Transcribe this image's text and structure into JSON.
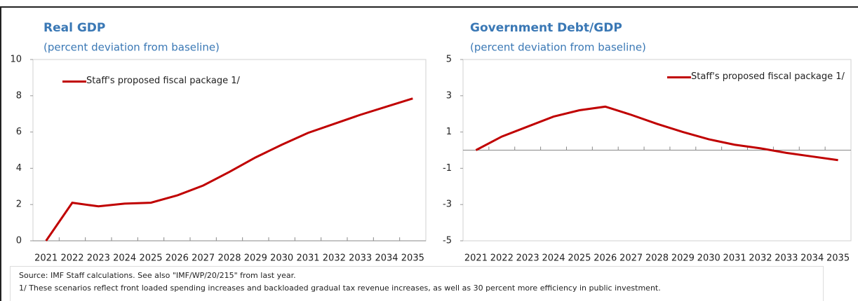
{
  "chart_data": [
    {
      "type": "line",
      "title": "Real GDP",
      "subtitle": "(percent deviation from baseline)",
      "categories": [
        "2021",
        "2022",
        "2023",
        "2024",
        "2025",
        "2026",
        "2027",
        "2028",
        "2029",
        "2030",
        "2031",
        "2032",
        "2033",
        "2034",
        "2035"
      ],
      "series": [
        {
          "name": "Staff's proposed fiscal package 1/",
          "color": "#c00000",
          "values": [
            0,
            2.1,
            1.9,
            2.05,
            2.1,
            2.5,
            3.05,
            3.8,
            4.6,
            5.3,
            5.95,
            6.45,
            6.95,
            7.4,
            7.85
          ]
        }
      ],
      "ylim": [
        0,
        10
      ],
      "yticks": [
        0,
        2,
        4,
        6,
        8,
        10
      ],
      "legend": "upper left"
    },
    {
      "type": "line",
      "title": "Government Debt/GDP",
      "subtitle": "(percent deviation from baseline)",
      "categories": [
        "2021",
        "2022",
        "2023",
        "2024",
        "2025",
        "2026",
        "2027",
        "2028",
        "2029",
        "2030",
        "2031",
        "2032",
        "2033",
        "2034",
        "2035"
      ],
      "series": [
        {
          "name": "Staff's proposed fiscal package 1/",
          "color": "#c00000",
          "values": [
            0,
            0.75,
            1.3,
            1.85,
            2.2,
            2.4,
            1.95,
            1.45,
            1.0,
            0.6,
            0.3,
            0.1,
            -0.15,
            -0.35,
            -0.55
          ]
        }
      ],
      "ylim": [
        -5,
        5
      ],
      "yticks": [
        -5,
        -3,
        -1,
        1,
        3,
        5
      ],
      "legend": "upper right"
    }
  ],
  "footnotes": [
    "Source: IMF Staff calculations. See also \"IMF/WP/20/215\" from last year.",
    "1/ These scenarios reflect front loaded spending increases and backloaded gradual tax revenue increases, as well as 30 percent more efficiency in public investment."
  ]
}
